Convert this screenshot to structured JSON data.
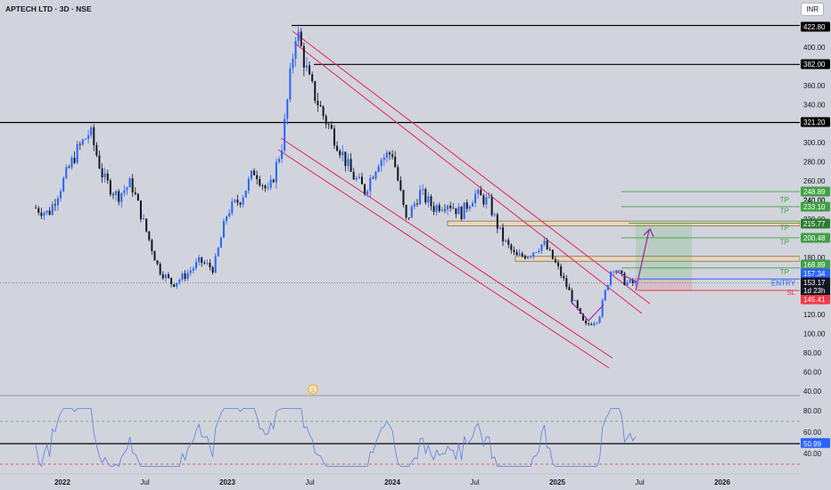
{
  "header": {
    "title": "APTECH LTD · 3D · NSE",
    "currency": "INR"
  },
  "chart_data": {
    "type": "candlestick",
    "symbol": "APTECH LTD",
    "interval": "3D",
    "exchange": "NSE",
    "y_ticks": [
      40,
      60,
      80,
      100,
      120,
      140,
      160,
      180,
      200,
      220,
      240,
      260,
      280,
      300,
      320,
      340,
      360,
      380,
      400,
      420
    ],
    "x_ticks": [
      "2022",
      "Jul",
      "2023",
      "Jul",
      "2024",
      "Jul",
      "2025",
      "Jul",
      "2026"
    ],
    "ylim": [
      40,
      430
    ],
    "close_path": [
      {
        "t": "2021-11",
        "v": 232
      },
      {
        "t": "2021-12",
        "v": 226
      },
      {
        "t": "2022-01",
        "v": 258
      },
      {
        "t": "2022-02",
        "v": 290
      },
      {
        "t": "2022-03",
        "v": 312
      },
      {
        "t": "2022-04",
        "v": 262
      },
      {
        "t": "2022-05",
        "v": 244
      },
      {
        "t": "2022-06",
        "v": 258
      },
      {
        "t": "2022-07",
        "v": 212
      },
      {
        "t": "2022-08",
        "v": 168
      },
      {
        "t": "2022-09",
        "v": 152
      },
      {
        "t": "2022-10",
        "v": 162
      },
      {
        "t": "2022-11",
        "v": 176
      },
      {
        "t": "2022-12",
        "v": 168
      },
      {
        "t": "2023-01",
        "v": 228
      },
      {
        "t": "2023-02",
        "v": 242
      },
      {
        "t": "2023-03",
        "v": 272
      },
      {
        "t": "2023-04",
        "v": 246
      },
      {
        "t": "2023-05",
        "v": 300
      },
      {
        "t": "2023-06",
        "v": 420
      },
      {
        "t": "2023-07",
        "v": 362
      },
      {
        "t": "2023-08",
        "v": 328
      },
      {
        "t": "2023-09",
        "v": 300
      },
      {
        "t": "2023-10",
        "v": 268
      },
      {
        "t": "2023-11",
        "v": 250
      },
      {
        "t": "2023-12",
        "v": 282
      },
      {
        "t": "2024-01",
        "v": 290
      },
      {
        "t": "2024-02",
        "v": 218
      },
      {
        "t": "2024-03",
        "v": 248
      },
      {
        "t": "2024-04",
        "v": 232
      },
      {
        "t": "2024-05",
        "v": 238
      },
      {
        "t": "2024-06",
        "v": 226
      },
      {
        "t": "2024-07",
        "v": 246
      },
      {
        "t": "2024-08",
        "v": 238
      },
      {
        "t": "2024-09",
        "v": 200
      },
      {
        "t": "2024-10",
        "v": 180
      },
      {
        "t": "2024-11",
        "v": 184
      },
      {
        "t": "2024-12",
        "v": 195
      },
      {
        "t": "2025-01",
        "v": 170
      },
      {
        "t": "2025-02",
        "v": 140
      },
      {
        "t": "2025-03",
        "v": 108
      },
      {
        "t": "2025-04",
        "v": 116
      },
      {
        "t": "2025-05",
        "v": 172
      },
      {
        "t": "2025-06",
        "v": 153
      }
    ],
    "horizontal_levels": [
      422.8,
      382.0,
      321.2
    ],
    "price_labels": [
      {
        "value": 422.8,
        "text": "422.80",
        "color": "#000000",
        "text_color": "#ffffff"
      },
      {
        "value": 382.0,
        "text": "382.00",
        "color": "#000000",
        "text_color": "#ffffff"
      },
      {
        "value": 321.2,
        "text": "321.20",
        "color": "#000000",
        "text_color": "#ffffff"
      },
      {
        "value": 248.89,
        "text": "248.89",
        "color": "#43a047",
        "text_color": "#ffffff"
      },
      {
        "value": 240.0,
        "text": "240.00",
        "color": "",
        "text_color": "#131722"
      },
      {
        "value": 233.1,
        "text": "233.10",
        "color": "#43a047",
        "text_color": "#ffffff"
      },
      {
        "value": 215.77,
        "text": "215.77",
        "color": "#2e7d32",
        "text_color": "#ffffff"
      },
      {
        "value": 200.48,
        "text": "200.48",
        "color": "#43a047",
        "text_color": "#ffffff"
      },
      {
        "value": 168.89,
        "text": "168.89",
        "color": "#43a047",
        "text_color": "#ffffff"
      },
      {
        "value": 157.34,
        "text": "157.34",
        "color": "#2962ff",
        "text_color": "#ffffff"
      },
      {
        "value": 153.17,
        "text": "153.17",
        "color": "#131722",
        "text_color": "#ffffff"
      },
      {
        "value": 145.41,
        "text": "145.41",
        "color": "#f23645",
        "text_color": "#ffffff"
      }
    ],
    "countdown": "1d 23h",
    "trade_setup": {
      "tp_label": "TP",
      "entry_label": "ENTRY",
      "sl_label": "SL",
      "targets": [
        248.89,
        233.1,
        200.48,
        168.89
      ],
      "entry": 157.34,
      "stop_loss": 145.41,
      "resistance_zone_1": [
        213,
        218
      ],
      "resistance_zone_2": [
        176,
        181
      ]
    },
    "rsi": {
      "y_ticks": [
        40,
        60,
        80
      ],
      "value_label": "50.99",
      "band_upper": 70,
      "band_lower": 30,
      "mid_line": 50,
      "ylim": [
        25,
        85
      ]
    },
    "event_marker": "S",
    "colors": {
      "up": "#2962ff",
      "down": "#131722",
      "channel": "#e91e63",
      "target": "#43a047",
      "entry": "#2962ff",
      "stop": "#f23645",
      "arrow": "#9c27b0"
    }
  }
}
